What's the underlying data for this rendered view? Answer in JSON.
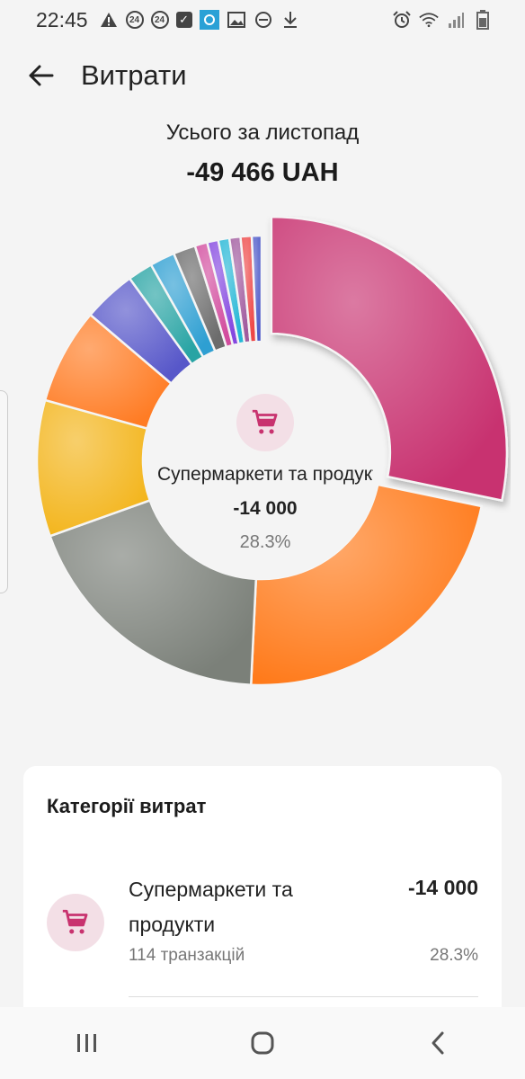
{
  "status_bar": {
    "time": "22:45",
    "left_icons": [
      "warning-icon",
      "badge-24-icon",
      "badge-24-icon",
      "check-box-icon",
      "app-blue-icon",
      "image-icon",
      "minus-circle-icon",
      "download-icon"
    ],
    "badge_text": "24",
    "right_icons": [
      "alarm-icon",
      "wifi-icon",
      "signal-icon",
      "battery-icon"
    ]
  },
  "appbar": {
    "title": "Витрати"
  },
  "summary": {
    "label": "Усього за листопад",
    "amount": "-49 466 UAH"
  },
  "selected": {
    "name": "Супермаркети та продукти",
    "value": "-14 000",
    "percent": "28.3%"
  },
  "chart_data": {
    "type": "pie",
    "total": 49466,
    "slices": [
      {
        "value": 28.3,
        "color": "#c8336f"
      },
      {
        "value": 22.5,
        "color": "#ff7a1a"
      },
      {
        "value": 18.8,
        "color": "#7b8079"
      },
      {
        "value": 9.8,
        "color": "#f3b51c"
      },
      {
        "value": 6.9,
        "color": "#ff7c24"
      },
      {
        "value": 3.8,
        "color": "#5757c9"
      },
      {
        "value": 1.8,
        "color": "#28a4a4"
      },
      {
        "value": 1.8,
        "color": "#2e9fd2"
      },
      {
        "value": 1.6,
        "color": "#6c6c6c"
      },
      {
        "value": 0.9,
        "color": "#d24c9e"
      },
      {
        "value": 0.8,
        "color": "#8447e0"
      },
      {
        "value": 0.8,
        "color": "#24b7d6"
      },
      {
        "value": 0.8,
        "color": "#a05a9e"
      },
      {
        "value": 0.8,
        "color": "#ee4646"
      },
      {
        "value": 0.7,
        "color": "#4b57c8"
      }
    ]
  },
  "card": {
    "title": "Категорії витрат",
    "items": [
      {
        "name": "Супермаркети та продукти",
        "count": "114 транзакцій",
        "amount": "-14 000",
        "percent": "28.3%"
      }
    ]
  }
}
